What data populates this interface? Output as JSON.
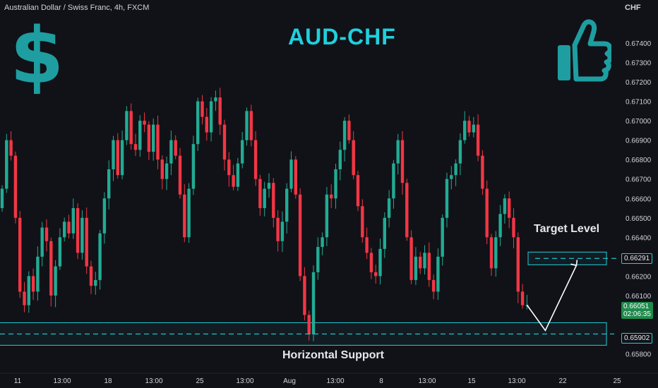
{
  "header": {
    "symbol_line": "Australian Dollar / Swiss Franc, 4h, FXCM",
    "currency": "CHF",
    "title": "AUD-CHF"
  },
  "decor": {
    "dollar_glyph": "$",
    "thumb_icon": "thumbs-up-icon",
    "accent": "#1fd0dd",
    "icon_color": "#1e9ea1"
  },
  "annotations": {
    "target": "Target Level",
    "support": "Horizontal Support"
  },
  "price_tags": {
    "target": "0.66291",
    "last": "0.66051",
    "countdown": "02:06:35",
    "support": "0.65902"
  },
  "colors": {
    "up": "#22ab94",
    "down": "#f23645",
    "bg": "#111217",
    "last_tag": "#1f8a4c",
    "zone": "#1fd0dd"
  },
  "chart_data": {
    "type": "candlestick",
    "symbol": "Australian Dollar / Swiss Franc",
    "timeframe": "4h",
    "source": "FXCM",
    "y_axis": {
      "range": [
        0.6578,
        0.6748
      ],
      "ticks": [
        "0.67400",
        "0.67300",
        "0.67200",
        "0.67100",
        "0.67000",
        "0.66900",
        "0.66800",
        "0.66700",
        "0.66600",
        "0.66500",
        "0.66400",
        "0.66300",
        "0.66200",
        "0.66100",
        "0.65800"
      ]
    },
    "x_axis": {
      "ticks": [
        "11",
        "13:00",
        "18",
        "13:00",
        "25",
        "13:00",
        "Aug",
        "13:00",
        "8",
        "13:00",
        "15",
        "13:00",
        "22",
        "25"
      ]
    },
    "levels": {
      "target": 0.66291,
      "support": 0.65902,
      "last": 0.66051
    },
    "closes": [
      0.6665,
      0.669,
      0.6682,
      0.665,
      0.6612,
      0.6605,
      0.662,
      0.6612,
      0.663,
      0.6645,
      0.6638,
      0.661,
      0.6625,
      0.664,
      0.6648,
      0.6642,
      0.6655,
      0.6632,
      0.665,
      0.6625,
      0.6615,
      0.6618,
      0.6642,
      0.666,
      0.6675,
      0.669,
      0.6672,
      0.669,
      0.6705,
      0.6688,
      0.6685,
      0.67,
      0.6698,
      0.6684,
      0.6698,
      0.668,
      0.667,
      0.6678,
      0.669,
      0.6682,
      0.6662,
      0.664,
      0.6665,
      0.6688,
      0.671,
      0.6702,
      0.6694,
      0.671,
      0.6712,
      0.6698,
      0.668,
      0.6672,
      0.6666,
      0.6678,
      0.669,
      0.6705,
      0.669,
      0.667,
      0.6655,
      0.6665,
      0.6668,
      0.665,
      0.6638,
      0.6648,
      0.6665,
      0.668,
      0.6662,
      0.662,
      0.66,
      0.659,
      0.6622,
      0.6635,
      0.664,
      0.6662,
      0.666,
      0.6675,
      0.6685,
      0.67,
      0.669,
      0.6672,
      0.6656,
      0.664,
      0.6632,
      0.6622,
      0.662,
      0.6634,
      0.665,
      0.666,
      0.6678,
      0.669,
      0.6668,
      0.664,
      0.6618,
      0.663,
      0.6624,
      0.6632,
      0.6618,
      0.6612,
      0.663,
      0.665,
      0.667,
      0.6672,
      0.6678,
      0.669,
      0.67,
      0.6694,
      0.6698,
      0.6682,
      0.6665,
      0.664,
      0.6624,
      0.664,
      0.6652,
      0.666,
      0.665,
      0.664,
      0.6612,
      0.6605,
      0.6605
    ]
  }
}
